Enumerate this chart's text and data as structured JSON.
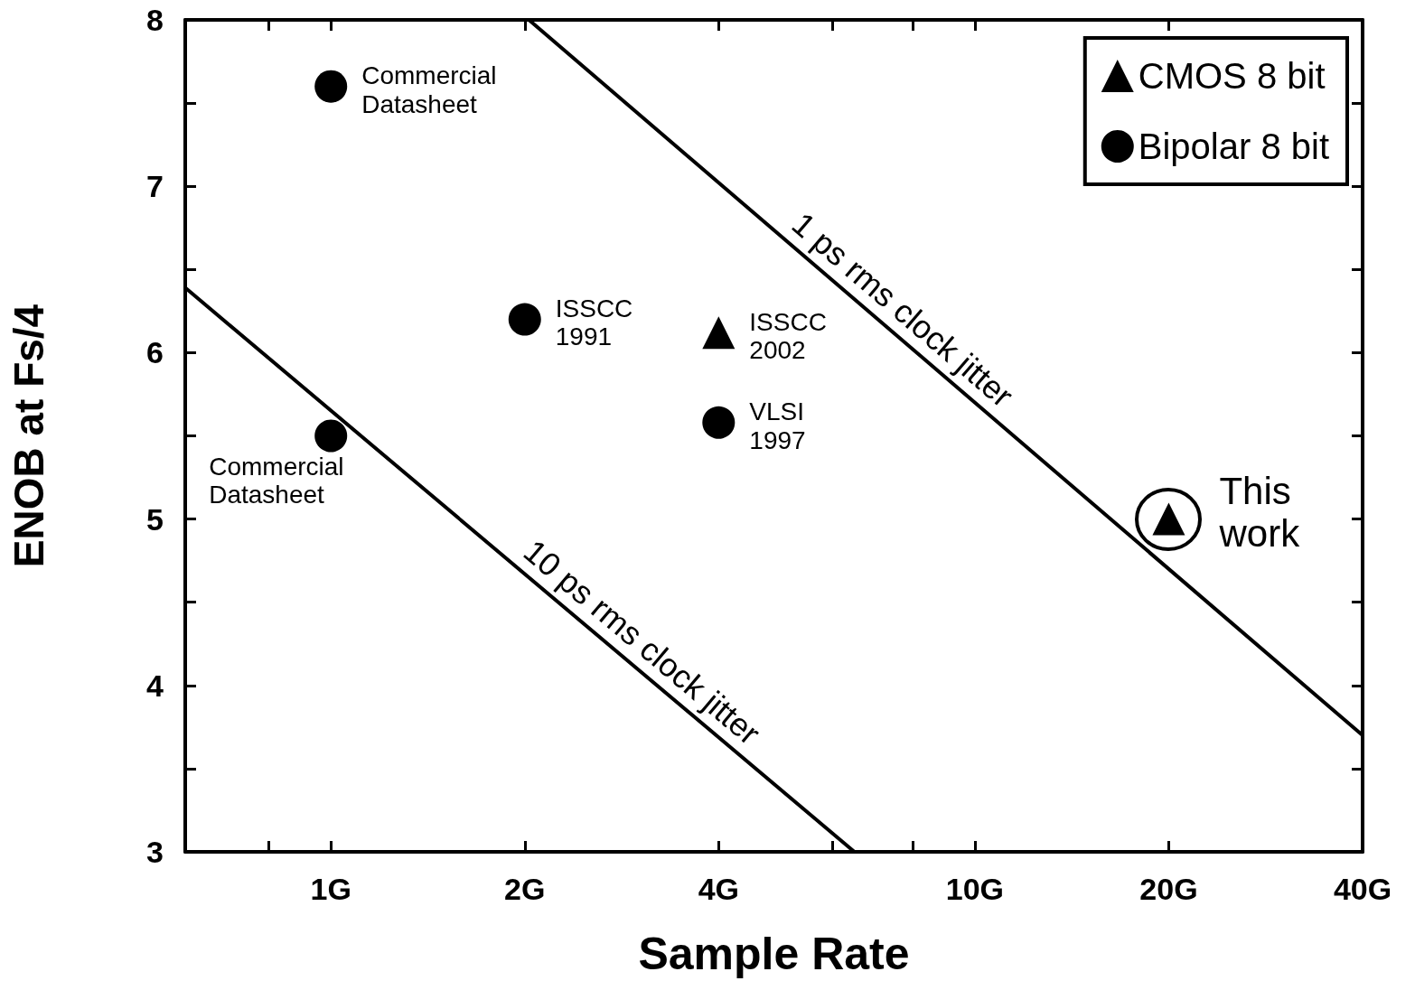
{
  "chart_data": {
    "type": "scatter",
    "xlabel": "Sample Rate",
    "ylabel": "ENOB at Fs/4",
    "xlim": [
      0.594,
      40
    ],
    "ylim": [
      3,
      8
    ],
    "log": "x",
    "xticks": [
      {
        "value": 0.8,
        "label": null
      },
      {
        "value": 1,
        "label": "1G"
      },
      {
        "value": 2,
        "label": "2G"
      },
      {
        "value": 4,
        "label": "4G"
      },
      {
        "value": 6,
        "label": null
      },
      {
        "value": 8,
        "label": null
      },
      {
        "value": 10,
        "label": "10G"
      },
      {
        "value": 20,
        "label": "20G"
      },
      {
        "value": 40,
        "label": "40G"
      }
    ],
    "yticks": [
      3,
      {
        "value": 3.5,
        "label": null
      },
      4,
      {
        "value": 4.5,
        "label": null
      },
      5,
      {
        "value": 5.5,
        "label": null
      },
      6,
      {
        "value": 6.5,
        "label": null
      },
      7,
      {
        "value": 7.5,
        "label": null
      },
      8
    ],
    "grid": false,
    "legend": "top right",
    "series": [
      {
        "name": "CMOS 8 bit",
        "marker": "triangle",
        "color": "#000000",
        "x": [
          4,
          20
        ],
        "values": [
          6.12,
          5.0
        ]
      },
      {
        "name": "Bipolar 8 bit",
        "marker": "circle",
        "color": "#000000",
        "x": [
          1,
          1,
          2,
          4
        ],
        "values": [
          7.6,
          5.5,
          6.2,
          5.58
        ]
      },
      {
        "name": "1 ps rms clock jitter",
        "type": "line",
        "marker": "none",
        "line_style": "solid",
        "color": "#000000",
        "x": [
          2.03,
          40
        ],
        "values": [
          8,
          3.7
        ]
      },
      {
        "name": "10 ps rms clock jitter",
        "type": "line",
        "marker": "none",
        "line_style": "solid",
        "color": "#000000",
        "x": [
          0.594,
          6.5
        ],
        "values": [
          6.39,
          3
        ]
      }
    ],
    "annotations": [
      {
        "text": "Commercial\nDatasheet",
        "x": 1,
        "y": 7.6
      },
      {
        "text": "Commercial\nDatasheet",
        "x": 1,
        "y": 5.5
      },
      {
        "text": "ISSCC\n1991",
        "x": 2,
        "y": 6.2
      },
      {
        "text": "ISSCC\n2002",
        "x": 4,
        "y": 6.12
      },
      {
        "text": "VLSI\n1997",
        "x": 4,
        "y": 5.58
      },
      {
        "text": "This\nwork",
        "x": 20,
        "y": 5.0
      }
    ]
  }
}
